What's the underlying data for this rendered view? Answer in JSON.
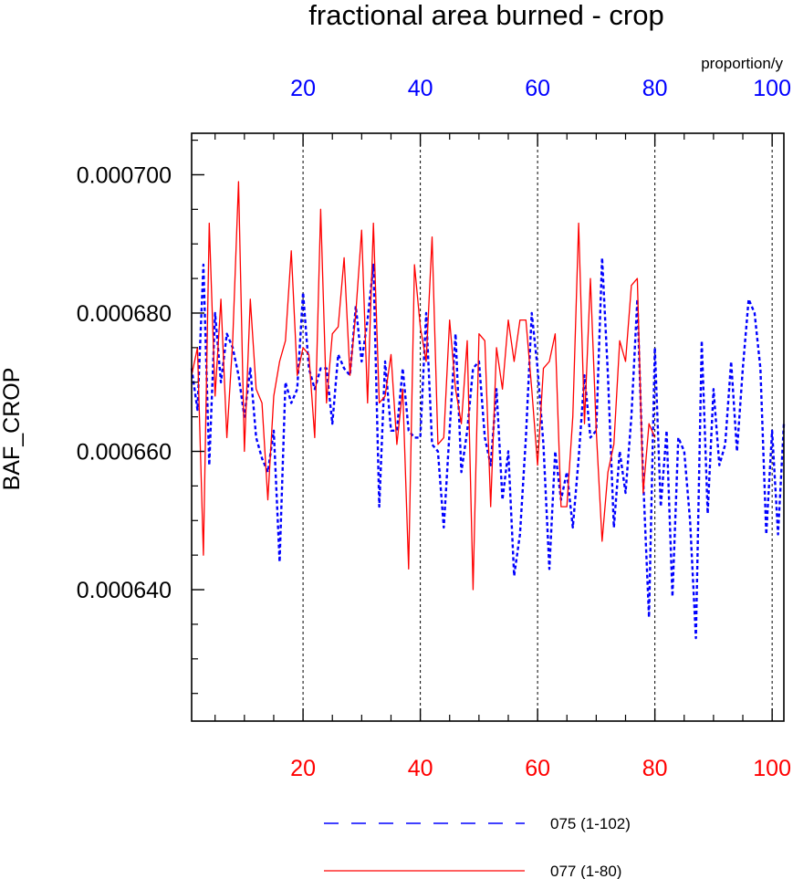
{
  "chart_data": {
    "type": "line",
    "title": "fractional area burned - crop",
    "ylabel": "BAF_CROP",
    "units": "proportion/y",
    "xlim": [
      1,
      102
    ],
    "ylim": [
      0.000621,
      0.000706
    ],
    "yticks": [
      "0.000640",
      "0.000660",
      "0.000680",
      "0.000700"
    ],
    "bottom_xticks": [
      "20",
      "40",
      "60",
      "80",
      "100"
    ],
    "top_xticks": [
      "20",
      "40",
      "60",
      "80",
      "100"
    ],
    "grid": "dashed vertical lines at x ticks",
    "legend_position": "bottom",
    "series": [
      {
        "name": "075 (1-102)",
        "color": "#0000ff",
        "style": "dashed",
        "x_start": 1,
        "values": [
          0.000672,
          0.000666,
          0.000687,
          0.000658,
          0.00068,
          0.00067,
          0.000677,
          0.000675,
          0.000671,
          0.000665,
          0.000672,
          0.000662,
          0.000659,
          0.000657,
          0.000663,
          0.000644,
          0.00067,
          0.000667,
          0.000669,
          0.000683,
          0.000672,
          0.000669,
          0.000672,
          0.000672,
          0.000664,
          0.000674,
          0.000672,
          0.000671,
          0.000681,
          0.000673,
          0.000679,
          0.000687,
          0.000652,
          0.000673,
          0.000663,
          0.000663,
          0.000672,
          0.000663,
          0.000662,
          0.000662,
          0.00068,
          0.000661,
          0.00066,
          0.000649,
          0.000663,
          0.000677,
          0.000657,
          0.000663,
          0.000672,
          0.000673,
          0.000662,
          0.000658,
          0.000669,
          0.000653,
          0.00066,
          0.000642,
          0.000648,
          0.000662,
          0.00068,
          0.000672,
          0.000661,
          0.000643,
          0.00066,
          0.000653,
          0.000657,
          0.000649,
          0.000659,
          0.000671,
          0.000662,
          0.000663,
          0.000688,
          0.000671,
          0.000649,
          0.00066,
          0.000654,
          0.000665,
          0.000682,
          0.000656,
          0.000636,
          0.000675,
          0.000652,
          0.000663,
          0.000639,
          0.000662,
          0.00066,
          0.00065,
          0.000633,
          0.000676,
          0.000651,
          0.000669,
          0.000658,
          0.000661,
          0.000673,
          0.00066,
          0.000672,
          0.000682,
          0.00068,
          0.000672,
          0.000648,
          0.000663,
          0.000648,
          0.000664
        ]
      },
      {
        "name": "077 (1-80)",
        "color": "#ff0000",
        "style": "solid",
        "x_start": 1,
        "values": [
          0.000671,
          0.000675,
          0.000645,
          0.000693,
          0.000668,
          0.000682,
          0.000662,
          0.000676,
          0.000699,
          0.00066,
          0.000682,
          0.000669,
          0.000667,
          0.000653,
          0.000668,
          0.000673,
          0.000676,
          0.000689,
          0.000671,
          0.000675,
          0.000674,
          0.000662,
          0.000695,
          0.000667,
          0.000677,
          0.000678,
          0.000688,
          0.000671,
          0.00068,
          0.000692,
          0.000667,
          0.000693,
          0.000667,
          0.000668,
          0.000674,
          0.000661,
          0.000669,
          0.000643,
          0.000687,
          0.000678,
          0.000673,
          0.000691,
          0.000661,
          0.000662,
          0.000679,
          0.000669,
          0.000664,
          0.000676,
          0.00064,
          0.000677,
          0.000676,
          0.000652,
          0.000675,
          0.000669,
          0.000679,
          0.000673,
          0.000679,
          0.000679,
          0.000669,
          0.000658,
          0.000672,
          0.000673,
          0.000677,
          0.000652,
          0.000652,
          0.000665,
          0.000693,
          0.000664,
          0.000685,
          0.000663,
          0.000647,
          0.000657,
          0.000661,
          0.000676,
          0.000673,
          0.000684,
          0.000685,
          0.000654,
          0.000664,
          0.000662
        ]
      }
    ]
  }
}
